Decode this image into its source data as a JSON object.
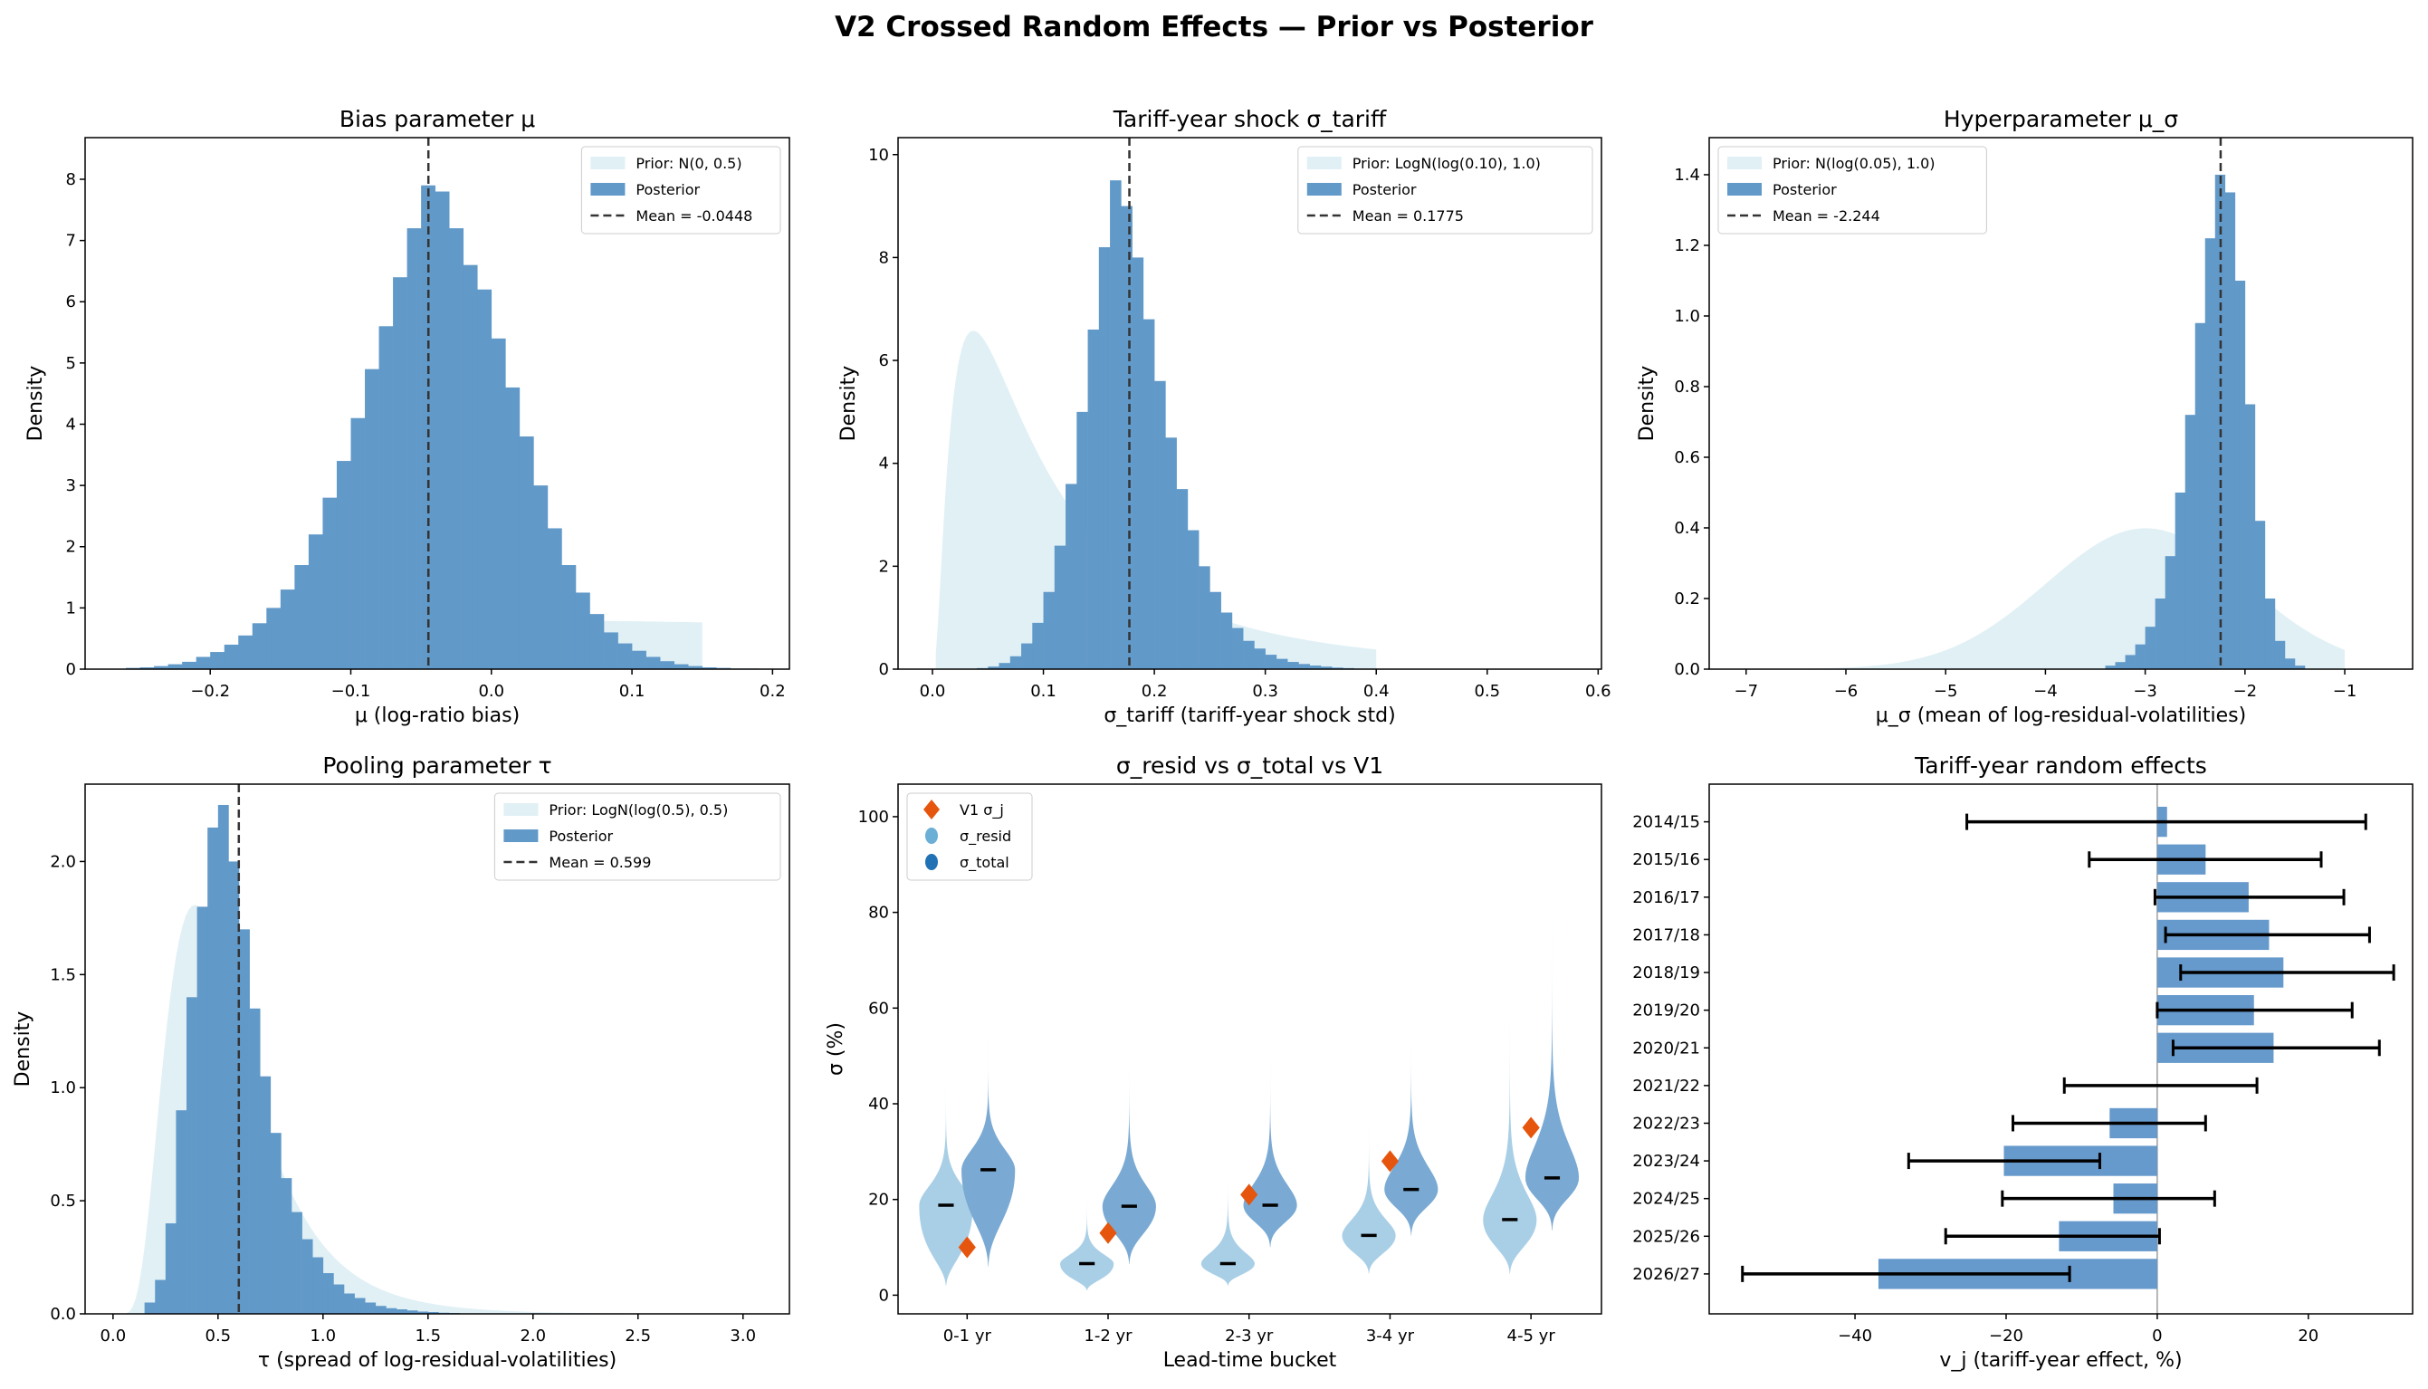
{
  "figure": {
    "title": "V2 Crossed Random Effects — Prior vs Posterior"
  },
  "colors": {
    "prior": "#add8e6",
    "posterior": "#6199c9",
    "mean_line": "#333333",
    "violin_resid": "#a9cfe6",
    "violin_total": "#7aaad3",
    "legend_resid": "#6baed6",
    "legend_total": "#2171b5",
    "v1_marker": "#e6550d",
    "bar": "#6699cc",
    "errorbar": "#000000"
  },
  "chart_data": [
    {
      "type": "histogram",
      "title": "Bias parameter μ",
      "xlabel": "μ (log-ratio bias)",
      "ylabel": "Density",
      "xlim": [
        -0.289,
        0.212
      ],
      "ylim": [
        0,
        8.68
      ],
      "xticks": [
        -0.2,
        -0.1,
        0,
        0.1,
        0.2
      ],
      "xtick_labels": [
        "−0.2",
        "−0.1",
        "0.0",
        "0.1",
        "0.2"
      ],
      "yticks": [
        0,
        1,
        2,
        3,
        4,
        5,
        6,
        7,
        8
      ],
      "ytick_labels": [
        "0",
        "1",
        "2",
        "3",
        "4",
        "5",
        "6",
        "7",
        "8"
      ],
      "legend": "top-right",
      "prior": {
        "label": "Prior: N(0, 0.5)",
        "dist": "normal",
        "params": [
          0,
          0.5
        ],
        "range": [
          -0.15,
          0.15
        ]
      },
      "posterior": {
        "label": "Posterior",
        "bin_start": -0.26,
        "bin_width": 0.01,
        "density": [
          0.02,
          0.03,
          0.05,
          0.08,
          0.12,
          0.2,
          0.28,
          0.4,
          0.55,
          0.75,
          1.0,
          1.3,
          1.7,
          2.2,
          2.8,
          3.4,
          4.1,
          4.9,
          5.6,
          6.4,
          7.2,
          7.9,
          7.8,
          7.2,
          6.6,
          6.2,
          5.4,
          4.6,
          3.8,
          3.0,
          2.3,
          1.7,
          1.25,
          0.9,
          0.6,
          0.42,
          0.3,
          0.2,
          0.13,
          0.08,
          0.05,
          0.03,
          0.02,
          0.01,
          0.01
        ]
      },
      "mean": {
        "label": "Mean = -0.0448",
        "value": -0.0448
      }
    },
    {
      "type": "histogram",
      "title": "Tariff-year shock σ_tariff",
      "xlabel": "σ_tariff (tariff-year shock std)",
      "ylabel": "Density",
      "xlim": [
        -0.031,
        0.603
      ],
      "ylim": [
        0,
        10.33
      ],
      "xticks": [
        0,
        0.1,
        0.2,
        0.3,
        0.4,
        0.5,
        0.6
      ],
      "xtick_labels": [
        "0.0",
        "0.1",
        "0.2",
        "0.3",
        "0.4",
        "0.5",
        "0.6"
      ],
      "yticks": [
        0,
        2,
        4,
        6,
        8,
        10
      ],
      "ytick_labels": [
        "0",
        "2",
        "4",
        "6",
        "8",
        "10"
      ],
      "legend": "top-right",
      "prior": {
        "label": "Prior: LogN(log(0.10), 1.0)",
        "dist": "lognormal",
        "params": [
          0.1,
          1.0
        ],
        "range": [
          0.003,
          0.4
        ]
      },
      "posterior": {
        "label": "Posterior",
        "bin_start": 0.04,
        "bin_width": 0.01,
        "density": [
          0.02,
          0.05,
          0.12,
          0.25,
          0.5,
          0.9,
          1.5,
          2.4,
          3.6,
          5.0,
          6.6,
          8.2,
          9.5,
          9.0,
          8.0,
          6.8,
          5.6,
          4.5,
          3.5,
          2.7,
          2.0,
          1.5,
          1.1,
          0.8,
          0.55,
          0.4,
          0.28,
          0.2,
          0.14,
          0.1,
          0.07,
          0.05,
          0.03,
          0.02,
          0.01,
          0.01
        ]
      },
      "mean": {
        "label": "Mean = 0.1775",
        "value": 0.1775
      }
    },
    {
      "type": "histogram",
      "title": "Hyperparameter μ_σ",
      "xlabel": "μ_σ (mean of log-residual-volatilities)",
      "ylabel": "Density",
      "xlim": [
        -7.37,
        -0.32
      ],
      "ylim": [
        0,
        1.505
      ],
      "xticks": [
        -7,
        -6,
        -5,
        -4,
        -3,
        -2,
        -1
      ],
      "xtick_labels": [
        "−7",
        "−6",
        "−5",
        "−4",
        "−3",
        "−2",
        "−1"
      ],
      "yticks": [
        0,
        0.2,
        0.4,
        0.6,
        0.8,
        1.0,
        1.2,
        1.4
      ],
      "ytick_labels": [
        "0.0",
        "0.2",
        "0.4",
        "0.6",
        "0.8",
        "1.0",
        "1.2",
        "1.4"
      ],
      "legend": "top-left",
      "prior": {
        "label": "Prior: N(log(0.05), 1.0)",
        "dist": "normal",
        "params": [
          -2.996,
          1.0
        ],
        "range": [
          -7,
          -1
        ]
      },
      "posterior": {
        "label": "Posterior",
        "bin_start": -3.4,
        "bin_width": 0.1,
        "density": [
          0.01,
          0.02,
          0.04,
          0.07,
          0.12,
          0.2,
          0.32,
          0.5,
          0.72,
          0.98,
          1.22,
          1.4,
          1.35,
          1.1,
          0.75,
          0.42,
          0.2,
          0.08,
          0.03,
          0.01
        ]
      },
      "mean": {
        "label": "Mean = -2.244",
        "value": -2.244
      }
    },
    {
      "type": "histogram",
      "title": "Pooling parameter τ",
      "xlabel": "τ (spread of log-residual-volatilities)",
      "ylabel": "Density",
      "xlim": [
        -0.133,
        3.221
      ],
      "ylim": [
        0,
        2.342
      ],
      "xticks": [
        0,
        0.5,
        1.0,
        1.5,
        2.0,
        2.5,
        3.0
      ],
      "xtick_labels": [
        "0.0",
        "0.5",
        "1.0",
        "1.5",
        "2.0",
        "2.5",
        "3.0"
      ],
      "yticks": [
        0,
        0.5,
        1.0,
        1.5,
        2.0
      ],
      "ytick_labels": [
        "0.0",
        "0.5",
        "1.0",
        "1.5",
        "2.0"
      ],
      "legend": "top-right",
      "prior": {
        "label": "Prior: LogN(log(0.5), 0.5)",
        "dist": "lognormal",
        "params": [
          0.5,
          0.5
        ],
        "range": [
          0.05,
          3.0
        ]
      },
      "posterior": {
        "label": "Posterior",
        "bin_start": 0.15,
        "bin_width": 0.05,
        "density": [
          0.05,
          0.15,
          0.4,
          0.9,
          1.4,
          1.8,
          2.15,
          2.25,
          2.0,
          1.7,
          1.35,
          1.05,
          0.8,
          0.6,
          0.45,
          0.33,
          0.25,
          0.18,
          0.13,
          0.09,
          0.07,
          0.05,
          0.035,
          0.025,
          0.02,
          0.015,
          0.01,
          0.008,
          0.005,
          0.004
        ]
      },
      "mean": {
        "label": "Mean = 0.599",
        "value": 0.599
      }
    },
    {
      "type": "violin",
      "title": "σ_resid vs σ_total vs V1",
      "xlabel": "Lead-time bucket",
      "ylabel": "σ (%)",
      "xlim": [
        -0.49,
        4.5
      ],
      "ylim": [
        -3.9,
        106.8
      ],
      "categories": [
        "0-1 yr",
        "1-2 yr",
        "2-3 yr",
        "3-4 yr",
        "4-5 yr"
      ],
      "yticks": [
        0,
        20,
        40,
        60,
        80,
        100
      ],
      "ytick_labels": [
        "0",
        "20",
        "40",
        "60",
        "80",
        "100"
      ],
      "legend": "top-left",
      "series": [
        {
          "name": "σ_resid",
          "median": [
            18.8,
            6.6,
            6.6,
            12.5,
            15.8
          ],
          "min": [
            2,
            1,
            2,
            4.5,
            4.5
          ],
          "max": [
            48,
            23,
            30,
            40,
            68
          ]
        },
        {
          "name": "σ_total",
          "median": [
            26.2,
            18.6,
            18.8,
            22.1,
            24.5
          ],
          "min": [
            6,
            6.5,
            10,
            12.5,
            13.5
          ],
          "max": [
            54,
            52,
            52,
            58,
            83
          ]
        },
        {
          "name": "V1 σ_j",
          "values": [
            10,
            13,
            21,
            28,
            35
          ]
        }
      ]
    },
    {
      "type": "barh",
      "title": "Tariff-year random effects",
      "xlabel": "v_j (tariff-year effect, %)",
      "ylabel": "",
      "xlim": [
        -59.3,
        33.8
      ],
      "xticks": [
        -40,
        -20,
        0,
        20
      ],
      "xtick_labels": [
        "−40",
        "−20",
        "0",
        "20"
      ],
      "categories": [
        "2014/15",
        "2015/16",
        "2016/17",
        "2017/18",
        "2018/19",
        "2019/20",
        "2020/21",
        "2021/22",
        "2022/23",
        "2023/24",
        "2024/25",
        "2025/26",
        "2026/27"
      ],
      "values": [
        1.3,
        6.4,
        12.1,
        14.8,
        16.7,
        12.8,
        15.4,
        0.0,
        -6.3,
        -20.3,
        -5.8,
        -13.0,
        -36.9
      ],
      "err_low": [
        -25.2,
        -9.0,
        -0.3,
        1.1,
        3.1,
        0.0,
        2.1,
        -12.3,
        -19.1,
        -32.9,
        -20.5,
        -28.0,
        -54.9
      ],
      "err_high": [
        27.6,
        21.7,
        24.7,
        28.1,
        31.3,
        25.8,
        29.4,
        13.2,
        6.4,
        -7.6,
        7.6,
        0.3,
        -11.6
      ]
    }
  ]
}
